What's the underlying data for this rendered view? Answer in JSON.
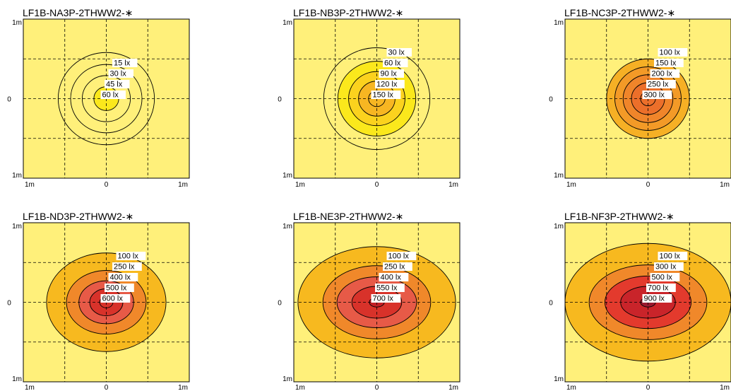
{
  "colors": {
    "background": "#fff07a",
    "grid": "#000000",
    "contour_line": "#000000",
    "label_box": "#ffffff"
  },
  "chart_data": [
    {
      "type": "heatmap",
      "title": "LF1B-NA3P-2THWW2-∗",
      "y_top_label": "1m",
      "y_mid_label": "0",
      "y_bottom_label": "1m",
      "x_left_label": "1m",
      "x_mid_label": "0",
      "x_right_label": "1m",
      "xlim": [
        -1,
        1
      ],
      "ylim": [
        -1,
        1
      ],
      "grid": "dashed",
      "contours": [
        {
          "label": "15 lx",
          "rx": 0.58,
          "ry": 0.58,
          "fill": null
        },
        {
          "label": "30 lx",
          "rx": 0.43,
          "ry": 0.43,
          "fill": null
        },
        {
          "label": "45 lx",
          "rx": 0.29,
          "ry": 0.29,
          "fill": null
        },
        {
          "label": "60 lx",
          "rx": 0.15,
          "ry": 0.15,
          "fill": "#fbe81c"
        }
      ]
    },
    {
      "type": "heatmap",
      "title": "LF1B-NB3P-2THWW2-∗",
      "y_top_label": "1m",
      "y_mid_label": "0",
      "y_bottom_label": "1m",
      "x_left_label": "1m",
      "x_mid_label": "0",
      "x_right_label": "1m",
      "xlim": [
        -1,
        1
      ],
      "ylim": [
        -1,
        1
      ],
      "grid": "dashed",
      "contours": [
        {
          "label": "30 lx",
          "rx": 0.64,
          "ry": 0.64,
          "fill": null
        },
        {
          "label": "60 lx",
          "rx": 0.47,
          "ry": 0.47,
          "fill": "#fbe81c"
        },
        {
          "label": "90 lx",
          "rx": 0.34,
          "ry": 0.34,
          "fill": "#fbd21e"
        },
        {
          "label": "120 lx",
          "rx": 0.22,
          "ry": 0.22,
          "fill": "#f7b622"
        },
        {
          "label": "150 lx",
          "rx": 0.1,
          "ry": 0.1,
          "fill": "#f7b622"
        }
      ]
    },
    {
      "type": "heatmap",
      "title": "LF1B-NC3P-2THWW2-∗",
      "y_top_label": "1m",
      "y_mid_label": "0",
      "y_bottom_label": "1m",
      "x_left_label": "1m",
      "x_mid_label": "0",
      "x_right_label": "1m",
      "xlim": [
        -1,
        1
      ],
      "ylim": [
        -1,
        1
      ],
      "grid": "dashed",
      "contours": [
        {
          "label": "100 lx",
          "rx": 0.5,
          "ry": 0.5,
          "fill": "#f6b025"
        },
        {
          "label": "150 lx",
          "rx": 0.4,
          "ry": 0.4,
          "fill": "#f39a27"
        },
        {
          "label": "200 lx",
          "rx": 0.3,
          "ry": 0.3,
          "fill": "#f0852a"
        },
        {
          "label": "250 lx",
          "rx": 0.2,
          "ry": 0.2,
          "fill": "#ec6f2a"
        },
        {
          "label": "300 lx",
          "rx": 0.09,
          "ry": 0.09,
          "fill": "#ec6f2a"
        }
      ]
    },
    {
      "type": "heatmap",
      "title": "LF1B-ND3P-2THWW2-∗",
      "y_top_label": "1m",
      "y_mid_label": "0",
      "y_bottom_label": "1m",
      "x_left_label": "1m",
      "x_mid_label": "0",
      "x_right_label": "1m",
      "xlim": [
        -1,
        1
      ],
      "ylim": [
        -1,
        1
      ],
      "grid": "dashed",
      "contours": [
        {
          "label": "100 lx",
          "rx": 0.72,
          "ry": 0.62,
          "fill": "#f7b91f"
        },
        {
          "label": "250 lx",
          "rx": 0.48,
          "ry": 0.4,
          "fill": "#f0882a"
        },
        {
          "label": "400 lx",
          "rx": 0.33,
          "ry": 0.27,
          "fill": "#e75a47"
        },
        {
          "label": "500 lx",
          "rx": 0.2,
          "ry": 0.17,
          "fill": "#d8322a"
        },
        {
          "label": "600 lx",
          "rx": 0.08,
          "ry": 0.07,
          "fill": "#d8322a"
        }
      ]
    },
    {
      "type": "heatmap",
      "title": "LF1B-NE3P-2THWW2-∗",
      "y_top_label": "1m",
      "y_mid_label": "0",
      "y_bottom_label": "1m",
      "x_left_label": "1m",
      "x_mid_label": "0",
      "x_right_label": "1m",
      "xlim": [
        -1,
        1
      ],
      "ylim": [
        -1,
        1
      ],
      "grid": "dashed",
      "contours": [
        {
          "label": "100 lx",
          "rx": 0.95,
          "ry": 0.7,
          "fill": "#f7b91f"
        },
        {
          "label": "250 lx",
          "rx": 0.65,
          "ry": 0.46,
          "fill": "#f0882a"
        },
        {
          "label": "400 lx",
          "rx": 0.48,
          "ry": 0.32,
          "fill": "#e75a47"
        },
        {
          "label": "550 lx",
          "rx": 0.3,
          "ry": 0.2,
          "fill": "#d8322a"
        },
        {
          "label": "700 lx",
          "rx": 0.09,
          "ry": 0.06,
          "fill": "#c21f25"
        }
      ]
    },
    {
      "type": "heatmap",
      "title": "LF1B-NF3P-2THWW2-∗",
      "y_top_label": "1m",
      "y_mid_label": "0",
      "y_bottom_label": "1m",
      "x_left_label": "1m",
      "x_mid_label": "0",
      "x_right_label": "1m",
      "xlim": [
        -1,
        1
      ],
      "ylim": [
        -1,
        1
      ],
      "grid": "dashed",
      "contours": [
        {
          "label": "100 lx",
          "rx": 1.0,
          "ry": 0.74,
          "fill": "#f7b91f"
        },
        {
          "label": "300 lx",
          "rx": 0.71,
          "ry": 0.47,
          "fill": "#f0882a"
        },
        {
          "label": "500 lx",
          "rx": 0.52,
          "ry": 0.33,
          "fill": "#e33a2d"
        },
        {
          "label": "700 lx",
          "rx": 0.33,
          "ry": 0.2,
          "fill": "#c9242a"
        },
        {
          "label": "900 lx",
          "rx": 0.09,
          "ry": 0.06,
          "fill": "#9a1a30"
        }
      ]
    }
  ]
}
